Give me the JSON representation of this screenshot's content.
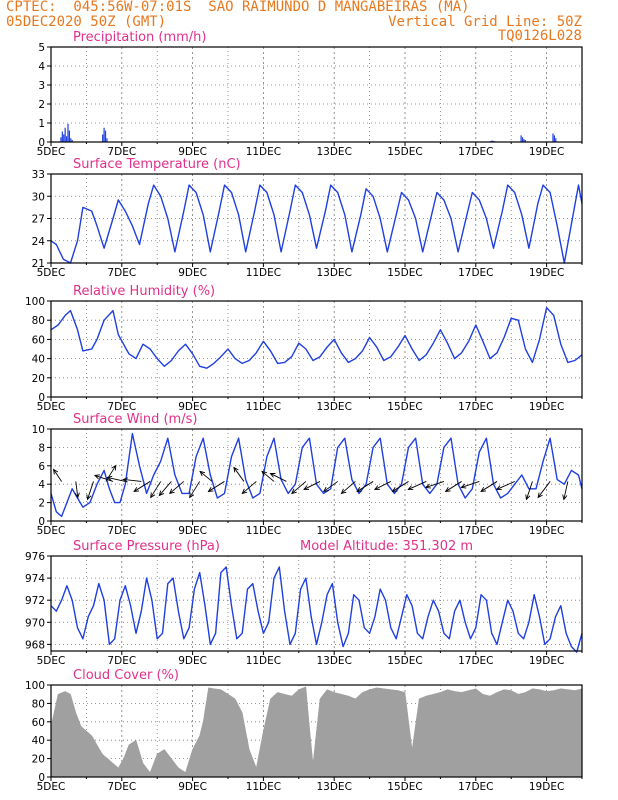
{
  "header": {
    "line1_left": "CPTEC:  045:56W-07:01S  SAO RAIMUNDO D MANGABEIRAS (MA)",
    "line2_left": "05DEC2020 50Z (GMT)",
    "line2_right": "Vertical Grid Line: 50Z",
    "line3_right": "TQ0126L028"
  },
  "colors": {
    "header": "#e8781e",
    "title": "#e0308a",
    "series": "#1f3fe0",
    "cloud": "#a0a0a0",
    "arrow": "#000000"
  },
  "x_ticks": [
    "5DEC",
    "7DEC",
    "9DEC",
    "11DEC",
    "13DEC",
    "15DEC",
    "17DEC",
    "19DEC"
  ],
  "chart_data": [
    {
      "id": "precip",
      "type": "bar",
      "title": "Precipitation (mm/h)",
      "ylim": [
        0,
        5
      ],
      "yticks": [
        0,
        1,
        2,
        3,
        4,
        5
      ],
      "x": [
        0.28,
        0.32,
        0.36,
        0.4,
        0.44,
        0.48,
        0.52,
        0.56,
        0.6,
        1.46,
        1.5,
        1.54,
        1.58,
        12.42,
        12.46,
        12.5,
        12.54,
        12.58,
        13.28,
        13.32,
        13.36,
        13.4,
        14.18,
        14.22,
        14.26
      ],
      "values": [
        0.25,
        0.55,
        0.4,
        0.75,
        0.3,
        0.95,
        0.6,
        0.2,
        0.1,
        0.4,
        0.75,
        0.6,
        0.2,
        0.05,
        0.08,
        0.06,
        0.04,
        0.03,
        0.35,
        0.25,
        0.15,
        0.1,
        0.45,
        0.35,
        0.2
      ]
    },
    {
      "id": "temp",
      "type": "line",
      "title": "Surface Temperature (nC)",
      "ylim": [
        21,
        33
      ],
      "yticks": [
        21,
        24,
        27,
        30,
        33
      ],
      "x": [
        0,
        0.15,
        0.35,
        0.55,
        0.75,
        0.9,
        1.15,
        1.3,
        1.5,
        1.75,
        1.9,
        2.1,
        2.3,
        2.5,
        2.75,
        2.9,
        3.1,
        3.3,
        3.5,
        3.75,
        3.9,
        4.1,
        4.3,
        4.5,
        4.75,
        4.9,
        5.1,
        5.3,
        5.5,
        5.75,
        5.9,
        6.1,
        6.3,
        6.5,
        6.75,
        6.9,
        7.1,
        7.3,
        7.5,
        7.75,
        7.9,
        8.1,
        8.3,
        8.5,
        8.75,
        8.9,
        9.1,
        9.3,
        9.5,
        9.75,
        9.9,
        10.1,
        10.3,
        10.5,
        10.75,
        10.9,
        11.1,
        11.3,
        11.5,
        11.75,
        11.9,
        12.1,
        12.3,
        12.5,
        12.75,
        12.9,
        13.1,
        13.3,
        13.5,
        13.75,
        13.9,
        14.1,
        14.3,
        14.5,
        14.75,
        14.9,
        15.0
      ],
      "values": [
        24,
        23.5,
        21.5,
        21,
        24,
        28.5,
        28,
        26,
        23,
        27,
        29.5,
        28,
        26,
        23.5,
        29,
        31.5,
        30,
        27,
        22.5,
        28,
        31.5,
        30.5,
        27.5,
        22.5,
        28,
        31.5,
        30.5,
        27.5,
        22.5,
        28,
        31.5,
        30.5,
        27.5,
        22.5,
        28,
        31.5,
        30.5,
        27.5,
        23,
        28,
        31.5,
        30.5,
        27.5,
        22.5,
        27.5,
        31,
        30,
        27,
        22.5,
        27.5,
        30.5,
        29.5,
        27,
        22.5,
        27.5,
        30.5,
        29.5,
        27,
        22.5,
        27.5,
        30.5,
        29.5,
        27,
        23,
        28,
        31.5,
        30.5,
        27.5,
        23,
        29,
        31.5,
        30.5,
        26,
        21,
        27.5,
        31.5,
        29
      ]
    },
    {
      "id": "rh",
      "type": "line",
      "title": "Relative Humidity (%)",
      "ylim": [
        0,
        100
      ],
      "yticks": [
        0,
        20,
        40,
        60,
        80,
        100
      ],
      "x": [
        0,
        0.2,
        0.4,
        0.55,
        0.75,
        0.9,
        1.15,
        1.3,
        1.5,
        1.75,
        1.9,
        2.2,
        2.4,
        2.6,
        2.8,
        3.0,
        3.2,
        3.4,
        3.6,
        3.8,
        4.0,
        4.2,
        4.4,
        4.6,
        4.8,
        5.0,
        5.2,
        5.4,
        5.6,
        5.8,
        6.0,
        6.2,
        6.4,
        6.6,
        6.8,
        7.0,
        7.2,
        7.4,
        7.6,
        7.8,
        8.0,
        8.2,
        8.4,
        8.6,
        8.8,
        9.0,
        9.2,
        9.4,
        9.6,
        9.8,
        10.0,
        10.2,
        10.4,
        10.6,
        10.8,
        11.0,
        11.2,
        11.4,
        11.6,
        11.8,
        12.0,
        12.2,
        12.4,
        12.6,
        12.8,
        13.0,
        13.2,
        13.4,
        13.6,
        13.8,
        14.0,
        14.2,
        14.4,
        14.6,
        14.8,
        15.0
      ],
      "values": [
        70,
        75,
        85,
        90,
        70,
        48,
        50,
        60,
        80,
        90,
        65,
        45,
        40,
        55,
        50,
        40,
        32,
        38,
        48,
        55,
        45,
        32,
        30,
        35,
        42,
        50,
        40,
        35,
        38,
        46,
        58,
        48,
        35,
        36,
        42,
        56,
        50,
        38,
        42,
        52,
        60,
        46,
        36,
        40,
        48,
        62,
        52,
        38,
        42,
        52,
        64,
        50,
        38,
        44,
        56,
        70,
        56,
        40,
        46,
        58,
        75,
        58,
        40,
        46,
        62,
        82,
        80,
        50,
        36,
        60,
        93,
        85,
        55,
        36,
        38,
        44
      ]
    },
    {
      "id": "wind",
      "type": "line",
      "title": "Surface Wind (m/s)",
      "ylim": [
        0,
        10
      ],
      "yticks": [
        0,
        2,
        4,
        6,
        8,
        10
      ],
      "x": [
        0,
        0.15,
        0.3,
        0.45,
        0.6,
        0.75,
        0.9,
        1.1,
        1.3,
        1.5,
        1.65,
        1.8,
        1.95,
        2.1,
        2.3,
        2.5,
        2.7,
        2.9,
        3.1,
        3.3,
        3.5,
        3.7,
        3.9,
        4.1,
        4.3,
        4.5,
        4.7,
        4.9,
        5.1,
        5.3,
        5.5,
        5.7,
        5.9,
        6.1,
        6.3,
        6.5,
        6.7,
        6.9,
        7.1,
        7.3,
        7.5,
        7.7,
        7.9,
        8.1,
        8.3,
        8.5,
        8.7,
        8.9,
        9.1,
        9.3,
        9.5,
        9.7,
        9.9,
        10.1,
        10.3,
        10.5,
        10.7,
        10.9,
        11.1,
        11.3,
        11.5,
        11.7,
        11.9,
        12.1,
        12.3,
        12.5,
        12.7,
        12.9,
        13.1,
        13.3,
        13.5,
        13.7,
        13.9,
        14.1,
        14.3,
        14.5,
        14.7,
        14.9,
        15.0
      ],
      "values": [
        3,
        1,
        0.5,
        2,
        3.5,
        2.5,
        1.5,
        2,
        4,
        5.5,
        3.5,
        2,
        2,
        4,
        9.5,
        6,
        3,
        5,
        6.5,
        9,
        5,
        3,
        3,
        7,
        9,
        5,
        2.5,
        3,
        7,
        9,
        4.5,
        2.5,
        3,
        7,
        9,
        4.5,
        3,
        4,
        8,
        9,
        4,
        3,
        3.5,
        8,
        9,
        4.5,
        3,
        4,
        8,
        9,
        4,
        3,
        4,
        8,
        9,
        4,
        3,
        4,
        8,
        9,
        4,
        2.5,
        3.5,
        7.5,
        9,
        4,
        2.5,
        3,
        4,
        5,
        3.5,
        3.5,
        6.5,
        9,
        4.5,
        4,
        5.5,
        5,
        3.5
      ],
      "arrows": [
        {
          "x": 0.3,
          "u": -0.4,
          "v": 0.6
        },
        {
          "x": 0.7,
          "u": 0.1,
          "v": -0.8
        },
        {
          "x": 1.2,
          "u": -0.3,
          "v": -0.9
        },
        {
          "x": 1.55,
          "u": 0.5,
          "v": 0.8
        },
        {
          "x": 1.75,
          "u": -0.9,
          "v": 0.3
        },
        {
          "x": 2.1,
          "u": -0.9,
          "v": 0.2
        },
        {
          "x": 2.55,
          "u": -0.9,
          "v": 0.1
        },
        {
          "x": 2.8,
          "u": -0.8,
          "v": -0.5
        },
        {
          "x": 3.1,
          "u": -0.5,
          "v": -0.8
        },
        {
          "x": 3.4,
          "u": -0.6,
          "v": -0.7
        },
        {
          "x": 3.75,
          "u": -0.7,
          "v": -0.6
        },
        {
          "x": 4.2,
          "u": -0.5,
          "v": -0.8
        },
        {
          "x": 4.55,
          "u": -0.6,
          "v": 0.5
        },
        {
          "x": 4.9,
          "u": -0.8,
          "v": -0.5
        },
        {
          "x": 5.45,
          "u": -0.5,
          "v": 0.7
        },
        {
          "x": 5.8,
          "u": -0.7,
          "v": -0.6
        },
        {
          "x": 6.3,
          "u": -0.6,
          "v": 0.5
        },
        {
          "x": 6.65,
          "u": -0.8,
          "v": 0.4
        },
        {
          "x": 7.2,
          "u": -0.7,
          "v": -0.6
        },
        {
          "x": 7.6,
          "u": -0.8,
          "v": -0.4
        },
        {
          "x": 8.1,
          "u": -0.7,
          "v": -0.5
        },
        {
          "x": 8.6,
          "u": -0.7,
          "v": -0.6
        },
        {
          "x": 9.1,
          "u": -0.8,
          "v": -0.5
        },
        {
          "x": 9.6,
          "u": -0.8,
          "v": -0.4
        },
        {
          "x": 10.1,
          "u": -0.8,
          "v": -0.5
        },
        {
          "x": 10.6,
          "u": -0.9,
          "v": -0.4
        },
        {
          "x": 11.1,
          "u": -0.9,
          "v": -0.3
        },
        {
          "x": 11.6,
          "u": -0.8,
          "v": -0.5
        },
        {
          "x": 12.1,
          "u": -0.9,
          "v": -0.3
        },
        {
          "x": 12.6,
          "u": -0.8,
          "v": -0.5
        },
        {
          "x": 13.1,
          "u": -0.9,
          "v": -0.4
        },
        {
          "x": 13.6,
          "u": -0.3,
          "v": -0.9
        },
        {
          "x": 14.1,
          "u": -0.6,
          "v": -0.8
        },
        {
          "x": 14.6,
          "u": -0.2,
          "v": -0.9
        }
      ]
    },
    {
      "id": "pressure",
      "type": "line",
      "title": "Surface Pressure (hPa)",
      "extra_label": "Model Altitude: 351.302 m",
      "ylim": [
        967.4,
        976
      ],
      "yticks": [
        968,
        970,
        972,
        974,
        976
      ],
      "x": [
        0,
        0.15,
        0.3,
        0.45,
        0.6,
        0.75,
        0.9,
        1.05,
        1.2,
        1.35,
        1.5,
        1.65,
        1.8,
        1.95,
        2.1,
        2.25,
        2.4,
        2.55,
        2.7,
        2.85,
        3.0,
        3.15,
        3.3,
        3.45,
        3.6,
        3.75,
        3.9,
        4.05,
        4.2,
        4.35,
        4.5,
        4.65,
        4.8,
        4.95,
        5.1,
        5.25,
        5.4,
        5.55,
        5.7,
        5.85,
        6.0,
        6.15,
        6.3,
        6.45,
        6.6,
        6.75,
        6.9,
        7.05,
        7.2,
        7.35,
        7.5,
        7.65,
        7.8,
        7.95,
        8.1,
        8.25,
        8.4,
        8.55,
        8.7,
        8.85,
        9.0,
        9.15,
        9.3,
        9.45,
        9.6,
        9.75,
        9.9,
        10.05,
        10.2,
        10.35,
        10.5,
        10.65,
        10.8,
        10.95,
        11.1,
        11.25,
        11.4,
        11.55,
        11.7,
        11.85,
        12.0,
        12.15,
        12.3,
        12.45,
        12.6,
        12.75,
        12.9,
        13.05,
        13.2,
        13.35,
        13.5,
        13.65,
        13.8,
        13.95,
        14.1,
        14.25,
        14.4,
        14.55,
        14.7,
        14.85,
        15.0
      ],
      "values": [
        971.5,
        971,
        972,
        973.3,
        972,
        969.5,
        968.5,
        970.5,
        971.5,
        973.5,
        972,
        968,
        968.5,
        972,
        973.3,
        971.5,
        969,
        971,
        974,
        972,
        968.5,
        969,
        973.5,
        974,
        971,
        968.5,
        969.5,
        973,
        974.5,
        971.5,
        968,
        969,
        974.5,
        975,
        971.5,
        968.5,
        969,
        973,
        973.5,
        971,
        969,
        970,
        974,
        975,
        971,
        968,
        969,
        973,
        974,
        970.5,
        968,
        970,
        972.5,
        973.5,
        970,
        967.8,
        969,
        972.5,
        972,
        969.5,
        969,
        970.5,
        973,
        972,
        969.5,
        968.5,
        970.5,
        972.5,
        971.5,
        969,
        968.5,
        970.5,
        972,
        971,
        969,
        968.5,
        971,
        972,
        970,
        968.5,
        969.5,
        972.5,
        972,
        969,
        968,
        970,
        972,
        971,
        969,
        968.5,
        970,
        972.5,
        970.5,
        968,
        968.5,
        970.5,
        971.5,
        969,
        967.8,
        967.3,
        969
      ]
    },
    {
      "id": "cloud",
      "type": "area",
      "title": "Cloud Cover (%)",
      "ylim": [
        0,
        100
      ],
      "yticks": [
        0,
        20,
        40,
        60,
        80,
        100
      ],
      "x": [
        0,
        0.2,
        0.4,
        0.55,
        0.7,
        0.85,
        1.0,
        1.15,
        1.3,
        1.45,
        1.6,
        1.75,
        1.9,
        2.05,
        2.2,
        2.4,
        2.6,
        2.8,
        3.0,
        3.2,
        3.4,
        3.6,
        3.8,
        4.0,
        4.2,
        4.3,
        4.45,
        4.6,
        4.8,
        5.0,
        5.2,
        5.4,
        5.6,
        5.8,
        6.0,
        6.2,
        6.4,
        6.6,
        6.8,
        7.0,
        7.2,
        7.3,
        7.4,
        7.6,
        7.8,
        8.0,
        8.2,
        8.4,
        8.6,
        8.8,
        9.0,
        9.2,
        9.4,
        9.6,
        9.8,
        10.0,
        10.2,
        10.4,
        10.6,
        10.8,
        11.0,
        11.2,
        11.4,
        11.6,
        11.8,
        12.0,
        12.2,
        12.4,
        12.6,
        12.8,
        13.0,
        13.2,
        13.4,
        13.6,
        13.8,
        14.0,
        14.2,
        14.4,
        14.6,
        14.8,
        15.0
      ],
      "values": [
        55,
        90,
        93,
        90,
        70,
        55,
        50,
        45,
        35,
        25,
        20,
        15,
        10,
        20,
        35,
        40,
        15,
        5,
        25,
        30,
        20,
        10,
        5,
        30,
        45,
        60,
        97,
        96,
        95,
        90,
        85,
        70,
        30,
        10,
        50,
        85,
        92,
        90,
        88,
        95,
        98,
        55,
        15,
        85,
        95,
        92,
        90,
        88,
        85,
        92,
        95,
        97,
        96,
        95,
        94,
        92,
        30,
        85,
        88,
        90,
        92,
        95,
        93,
        92,
        94,
        96,
        90,
        88,
        92,
        95,
        94,
        90,
        92,
        96,
        95,
        93,
        94,
        96,
        95,
        94,
        96
      ]
    }
  ]
}
